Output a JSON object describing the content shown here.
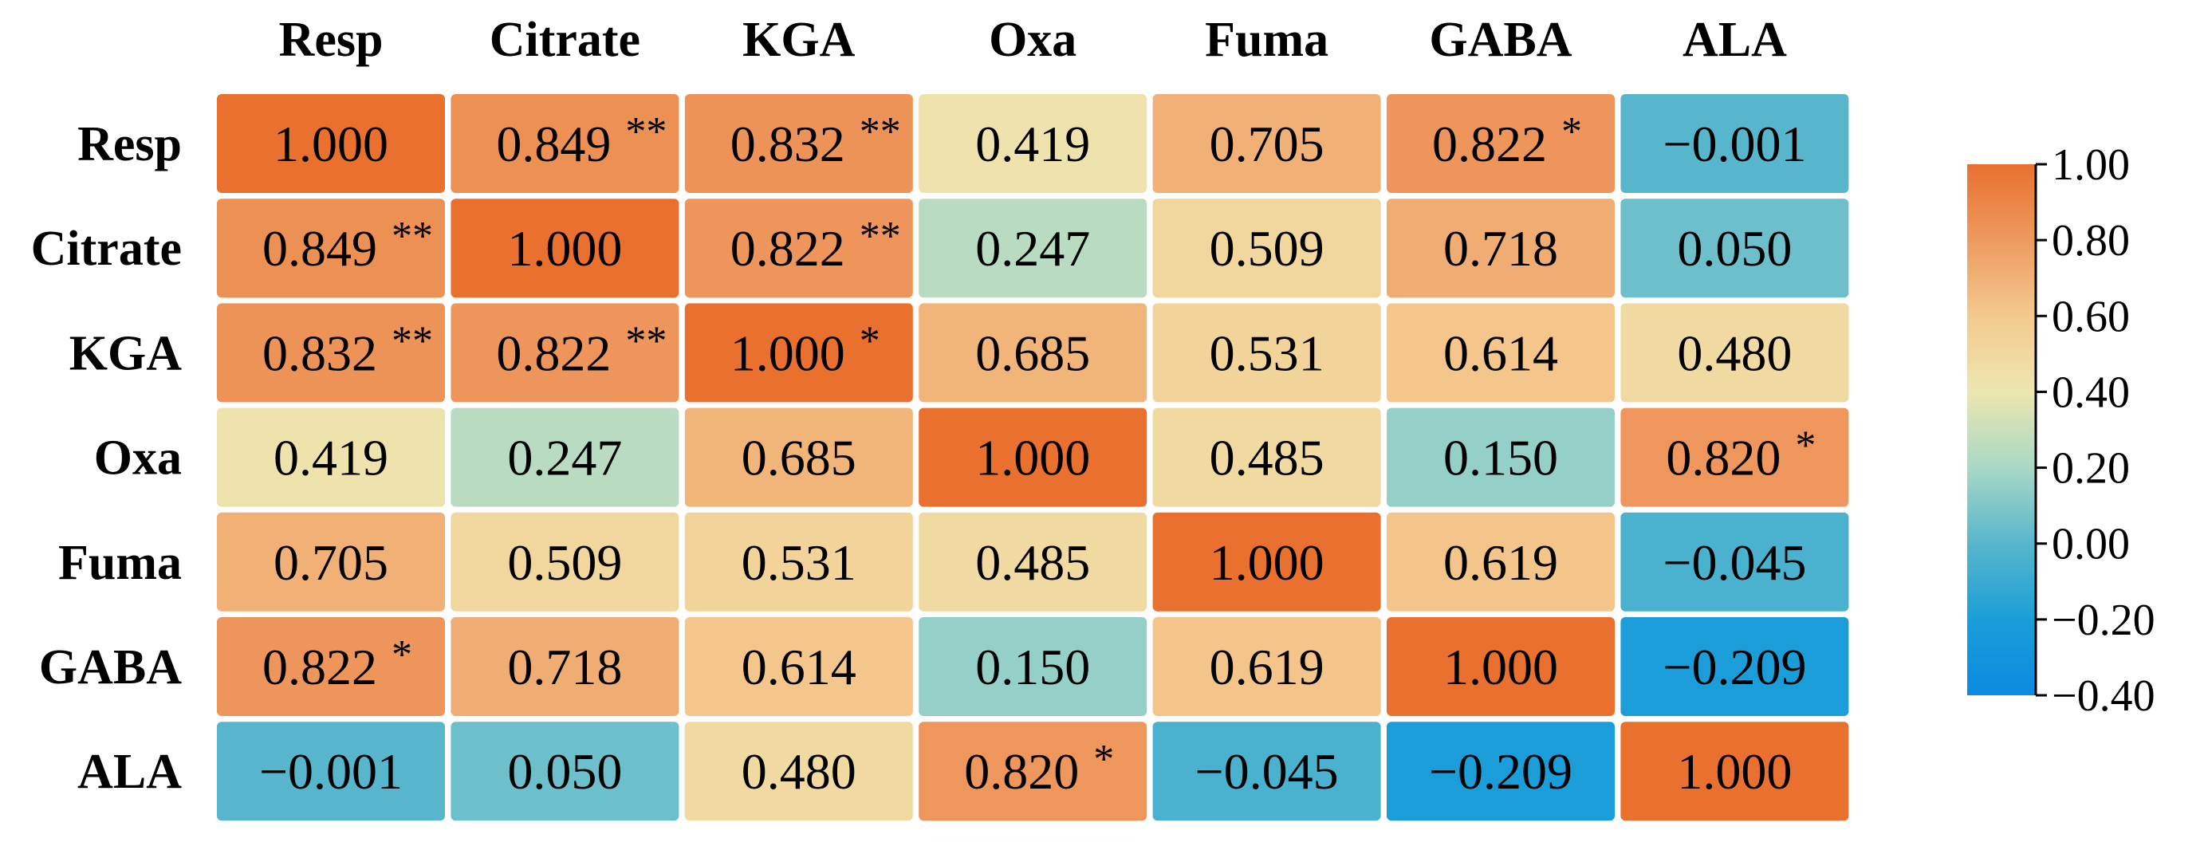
{
  "chart_data": {
    "type": "heatmap",
    "title": "",
    "variables": [
      "Resp",
      "Citrate",
      "KGA",
      "Oxa",
      "Fuma",
      "GABA",
      "ALA"
    ],
    "cells": [
      [
        {
          "value": 1.0,
          "label": "1.000",
          "sig": ""
        },
        {
          "value": 0.849,
          "label": "0.849",
          "sig": "**"
        },
        {
          "value": 0.832,
          "label": "0.832",
          "sig": "**"
        },
        {
          "value": 0.419,
          "label": "0.419",
          "sig": ""
        },
        {
          "value": 0.705,
          "label": "0.705",
          "sig": ""
        },
        {
          "value": 0.822,
          "label": "0.822",
          "sig": "*"
        },
        {
          "value": -0.001,
          "label": "−0.001",
          "sig": ""
        }
      ],
      [
        {
          "value": 0.849,
          "label": "0.849",
          "sig": "**"
        },
        {
          "value": 1.0,
          "label": "1.000",
          "sig": ""
        },
        {
          "value": 0.822,
          "label": "0.822",
          "sig": "**"
        },
        {
          "value": 0.247,
          "label": "0.247",
          "sig": ""
        },
        {
          "value": 0.509,
          "label": "0.509",
          "sig": ""
        },
        {
          "value": 0.718,
          "label": "0.718",
          "sig": ""
        },
        {
          "value": 0.05,
          "label": "0.050",
          "sig": ""
        }
      ],
      [
        {
          "value": 0.832,
          "label": "0.832",
          "sig": "**"
        },
        {
          "value": 0.822,
          "label": "0.822",
          "sig": "**"
        },
        {
          "value": 1.0,
          "label": "1.000",
          "sig": "*"
        },
        {
          "value": 0.685,
          "label": "0.685",
          "sig": ""
        },
        {
          "value": 0.531,
          "label": "0.531",
          "sig": ""
        },
        {
          "value": 0.614,
          "label": "0.614",
          "sig": ""
        },
        {
          "value": 0.48,
          "label": "0.480",
          "sig": ""
        }
      ],
      [
        {
          "value": 0.419,
          "label": "0.419",
          "sig": ""
        },
        {
          "value": 0.247,
          "label": "0.247",
          "sig": ""
        },
        {
          "value": 0.685,
          "label": "0.685",
          "sig": ""
        },
        {
          "value": 1.0,
          "label": "1.000",
          "sig": ""
        },
        {
          "value": 0.485,
          "label": "0.485",
          "sig": ""
        },
        {
          "value": 0.15,
          "label": "0.150",
          "sig": ""
        },
        {
          "value": 0.82,
          "label": "0.820",
          "sig": "*"
        }
      ],
      [
        {
          "value": 0.705,
          "label": "0.705",
          "sig": ""
        },
        {
          "value": 0.509,
          "label": "0.509",
          "sig": ""
        },
        {
          "value": 0.531,
          "label": "0.531",
          "sig": ""
        },
        {
          "value": 0.485,
          "label": "0.485",
          "sig": ""
        },
        {
          "value": 1.0,
          "label": "1.000",
          "sig": ""
        },
        {
          "value": 0.619,
          "label": "0.619",
          "sig": ""
        },
        {
          "value": -0.045,
          "label": "−0.045",
          "sig": ""
        }
      ],
      [
        {
          "value": 0.822,
          "label": "0.822",
          "sig": "*"
        },
        {
          "value": 0.718,
          "label": "0.718",
          "sig": ""
        },
        {
          "value": 0.614,
          "label": "0.614",
          "sig": ""
        },
        {
          "value": 0.15,
          "label": "0.150",
          "sig": ""
        },
        {
          "value": 0.619,
          "label": "0.619",
          "sig": ""
        },
        {
          "value": 1.0,
          "label": "1.000",
          "sig": ""
        },
        {
          "value": -0.209,
          "label": "−0.209",
          "sig": ""
        }
      ],
      [
        {
          "value": -0.001,
          "label": "−0.001",
          "sig": ""
        },
        {
          "value": 0.05,
          "label": "0.050",
          "sig": ""
        },
        {
          "value": 0.48,
          "label": "0.480",
          "sig": ""
        },
        {
          "value": 0.82,
          "label": "0.820",
          "sig": "*"
        },
        {
          "value": -0.045,
          "label": "−0.045",
          "sig": ""
        },
        {
          "value": -0.209,
          "label": "−0.209",
          "sig": ""
        },
        {
          "value": 1.0,
          "label": "1.000",
          "sig": ""
        }
      ]
    ],
    "colorbar": {
      "vmin": -0.4,
      "vmax": 1.0,
      "ticks": [
        1.0,
        0.8,
        0.6,
        0.4,
        0.2,
        0.0,
        -0.2,
        -0.4
      ],
      "tick_labels": [
        "1.00",
        "0.80",
        "0.60",
        "0.40",
        "0.20",
        "0.00",
        "−0.20",
        "−0.40"
      ],
      "color_stops": [
        {
          "value": -0.4,
          "color": "#0a8ae0"
        },
        {
          "value": -0.2,
          "color": "#1b9ed8"
        },
        {
          "value": 0.0,
          "color": "#58b6cc"
        },
        {
          "value": 0.2,
          "color": "#a9d8c6"
        },
        {
          "value": 0.4,
          "color": "#ede6b0"
        },
        {
          "value": 0.6,
          "color": "#f4c98e"
        },
        {
          "value": 0.8,
          "color": "#ee9a60"
        },
        {
          "value": 1.0,
          "color": "#e9702e"
        }
      ]
    }
  }
}
